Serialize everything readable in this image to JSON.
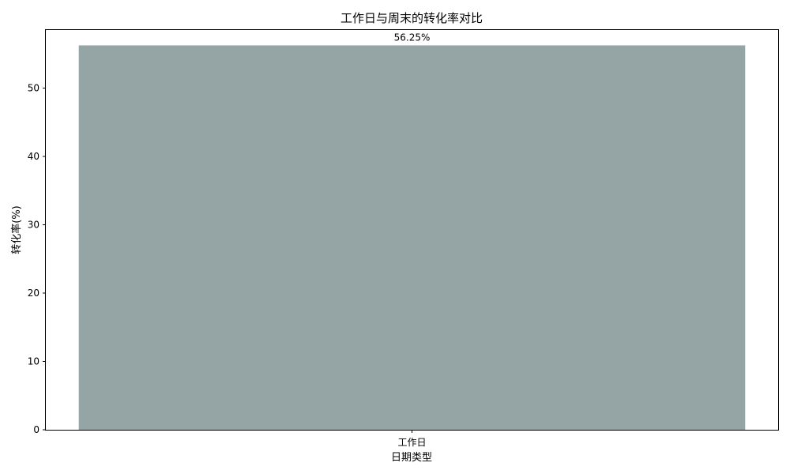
{
  "chart_data": {
    "type": "bar",
    "title": "工作日与周末的转化率对比",
    "xlabel": "日期类型",
    "ylabel": "转化率(%)",
    "categories": [
      "工作日"
    ],
    "values": [
      56.25
    ],
    "data_labels": [
      "56.25%"
    ],
    "ylim": [
      0,
      58.5
    ],
    "yticks": [
      0,
      10,
      20,
      30,
      40,
      50
    ],
    "grid": false,
    "legend": "none",
    "bar_color": "#95a5a6"
  }
}
